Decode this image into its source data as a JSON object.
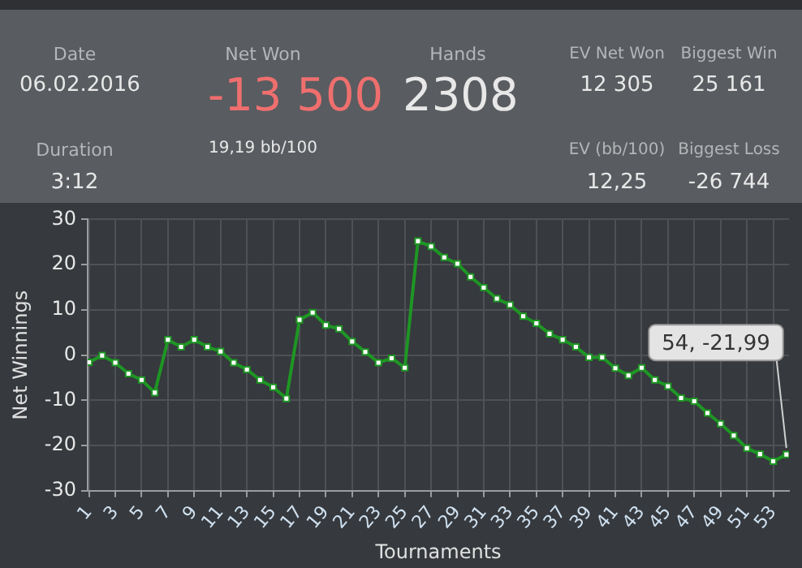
{
  "chart_data": [
    {
      "type": "other",
      "annotations": [
        "Date",
        "06.02.2016",
        "Duration",
        "3:12",
        "Net Won",
        "-13 500",
        "19,19 bb/100",
        "Hands",
        "2308",
        "EV Net Won",
        "12 305",
        "EV (bb/100)",
        "12,25",
        "Biggest Win",
        "25 161",
        "Biggest Loss",
        "-26 744"
      ]
    },
    {
      "type": "line",
      "xlabel": "Tournaments",
      "ylabel": "Net Winnings",
      "x": [
        1,
        2,
        3,
        4,
        5,
        6,
        7,
        8,
        9,
        10,
        11,
        12,
        13,
        14,
        15,
        16,
        17,
        18,
        19,
        20,
        21,
        22,
        23,
        24,
        25,
        26,
        27,
        28,
        29,
        30,
        31,
        32,
        33,
        34,
        35,
        36,
        37,
        38,
        39,
        40,
        41,
        42,
        43,
        44,
        45,
        46,
        47,
        48,
        49,
        50,
        51,
        52,
        53,
        54
      ],
      "series": [
        {
          "color": "#1e9624",
          "values": [
            -1.6,
            -0.1,
            -1.7,
            -4.1,
            -5.5,
            -8.3,
            3.4,
            1.8,
            3.4,
            1.8,
            0.8,
            -1.7,
            -3.2,
            -5.5,
            -7.1,
            -9.6,
            7.8,
            9.4,
            6.6,
            5.8,
            3.0,
            0.7,
            -1.7,
            -0.7,
            -2.8,
            25.2,
            24.0,
            21.6,
            20.2,
            17.3,
            14.9,
            12.5,
            11.1,
            8.6,
            7.0,
            4.7,
            3.4,
            1.8,
            -0.5,
            -0.5,
            -2.9,
            -4.5,
            -2.8,
            -5.5,
            -6.9,
            -9.5,
            -10.2,
            -12.8,
            -15.2,
            -17.8,
            -20.6,
            -21.9,
            -23.5,
            -21.99
          ]
        }
      ],
      "xlim": [
        0.9,
        54.2
      ],
      "xticks": [
        1,
        3,
        5,
        7,
        9,
        11,
        13,
        15,
        17,
        19,
        21,
        23,
        25,
        27,
        29,
        31,
        33,
        35,
        37,
        39,
        41,
        43,
        45,
        47,
        49,
        51,
        53
      ],
      "ylim": [
        -30,
        30
      ],
      "yticks": [
        -30,
        -20,
        -10,
        0,
        10,
        20,
        30
      ],
      "grid": true,
      "marker": "square",
      "line_style": "solid",
      "legend": false,
      "annotations": [
        {
          "text": "54, -21,99",
          "x": 54,
          "y": -21.99
        }
      ]
    }
  ]
}
